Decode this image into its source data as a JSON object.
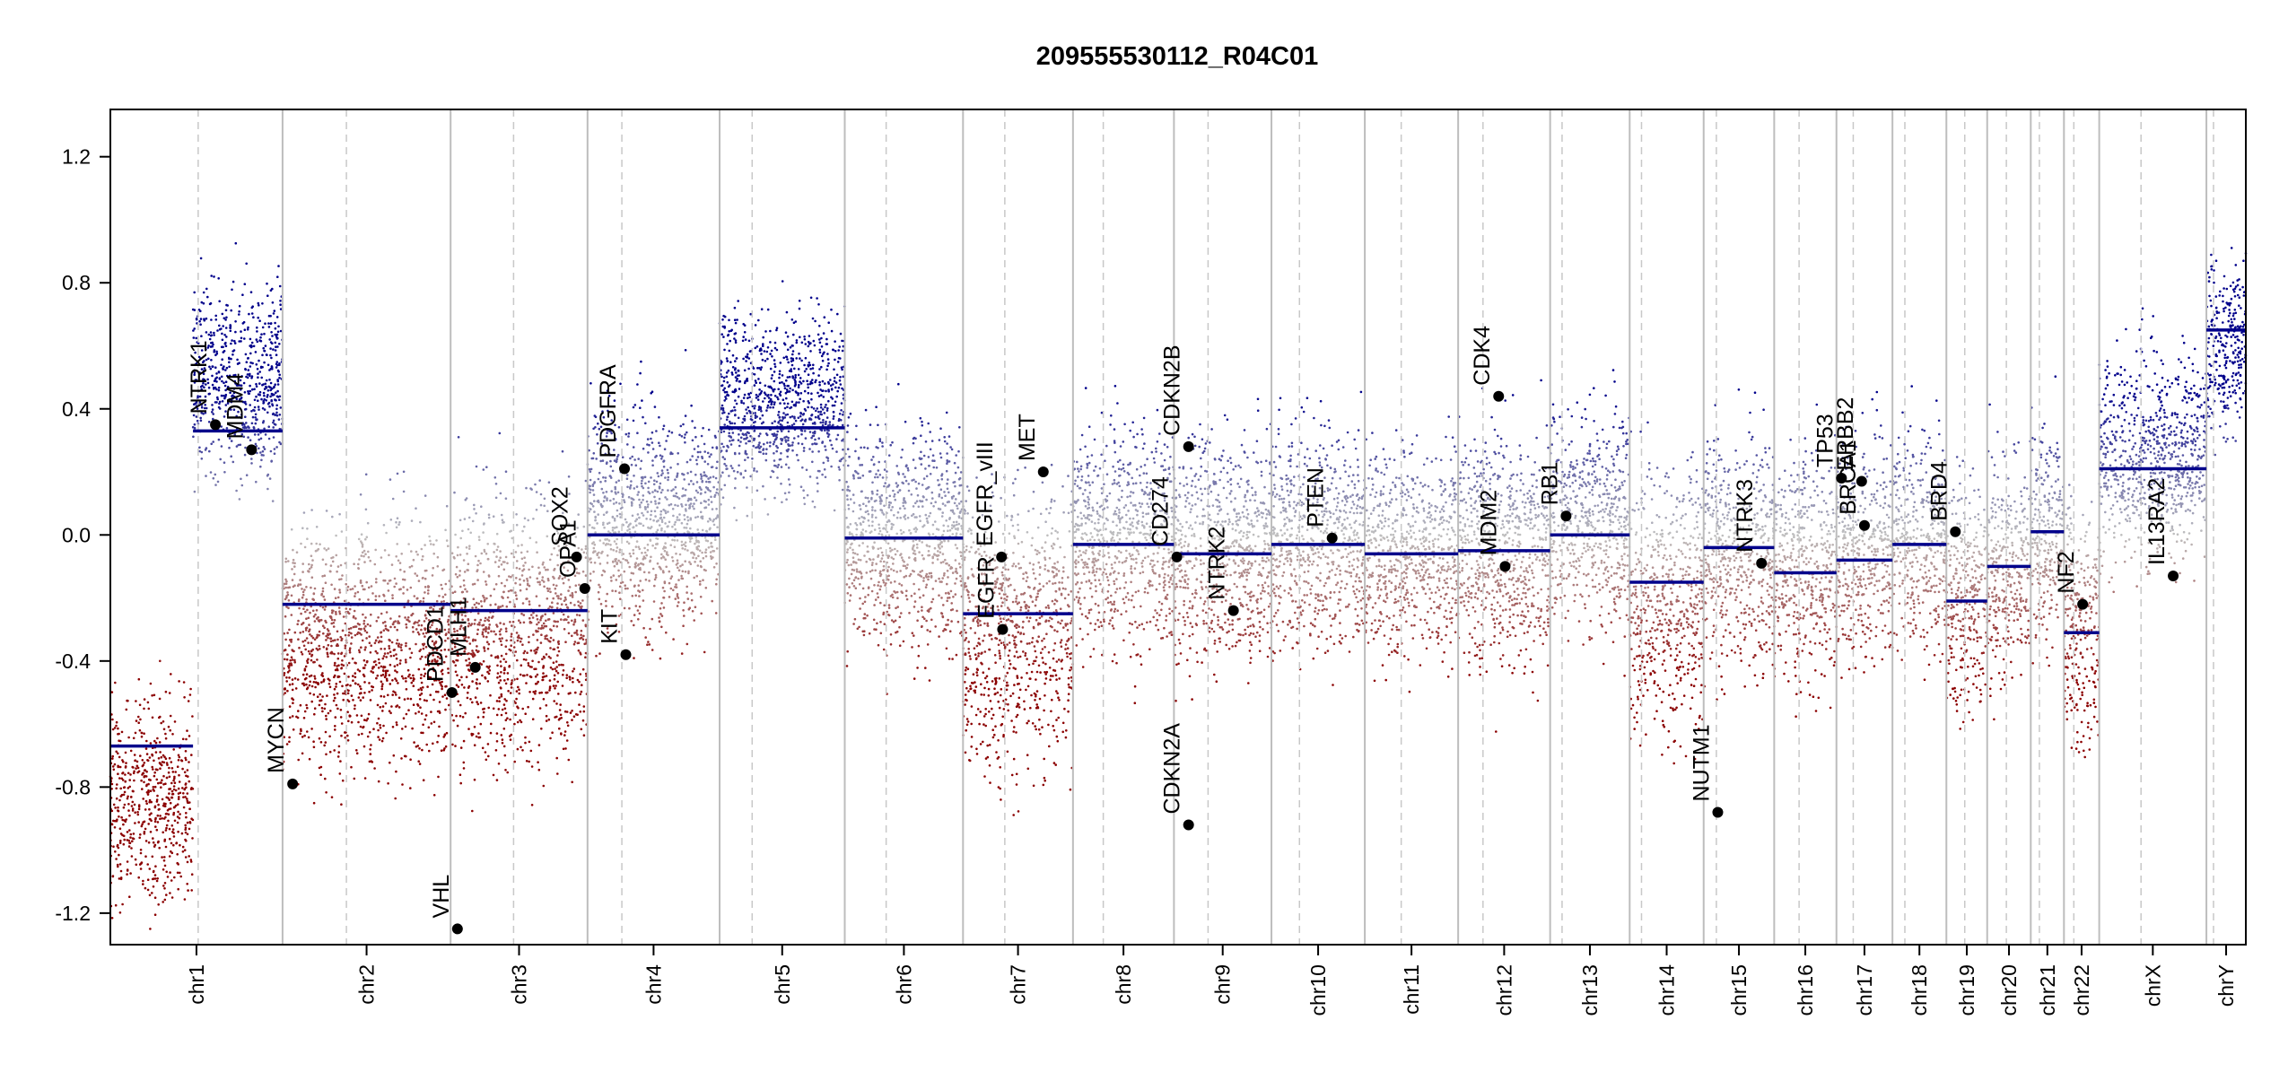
{
  "chart_data": {
    "type": "scatter",
    "title": "209555530112_R04C01",
    "xlabel": "",
    "ylabel": "",
    "ylim": [
      -1.3,
      1.35
    ],
    "y_ticks": [
      "1.2",
      "0.8",
      "0.4",
      "0.0",
      "-0.4",
      "-0.8",
      "-1.2"
    ],
    "y_tick_values": [
      1.2,
      0.8,
      0.4,
      0.0,
      -0.4,
      -0.8,
      -1.2
    ],
    "grid": false,
    "legend": "none",
    "colors": {
      "gain": "#00008b",
      "loss": "#8b0000",
      "neutral": "#bfbfbf",
      "segment": "#00008b",
      "boundary": "#bdbdbd",
      "centromere": "#c8c8c8"
    },
    "chromosomes": [
      {
        "name": "chr1",
        "weight": 249,
        "centromere": 0.51
      },
      {
        "name": "chr2",
        "weight": 243,
        "centromere": 0.38
      },
      {
        "name": "chr3",
        "weight": 198,
        "centromere": 0.46
      },
      {
        "name": "chr4",
        "weight": 191,
        "centromere": 0.26
      },
      {
        "name": "chr5",
        "weight": 181,
        "centromere": 0.26
      },
      {
        "name": "chr6",
        "weight": 171,
        "centromere": 0.35
      },
      {
        "name": "chr7",
        "weight": 159,
        "centromere": 0.38
      },
      {
        "name": "chr8",
        "weight": 146,
        "centromere": 0.3
      },
      {
        "name": "chr9",
        "weight": 141,
        "centromere": 0.35
      },
      {
        "name": "chr10",
        "weight": 135,
        "centromere": 0.3
      },
      {
        "name": "chr11",
        "weight": 135,
        "centromere": 0.39
      },
      {
        "name": "chr12",
        "weight": 133,
        "centromere": 0.27
      },
      {
        "name": "chr13",
        "weight": 115,
        "centromere": 0.15
      },
      {
        "name": "chr14",
        "weight": 107,
        "centromere": 0.16
      },
      {
        "name": "chr15",
        "weight": 102,
        "centromere": 0.18
      },
      {
        "name": "chr16",
        "weight": 90,
        "centromere": 0.4
      },
      {
        "name": "chr17",
        "weight": 81,
        "centromere": 0.3
      },
      {
        "name": "chr18",
        "weight": 78,
        "centromere": 0.23
      },
      {
        "name": "chr19",
        "weight": 59,
        "centromere": 0.45
      },
      {
        "name": "chr20",
        "weight": 63,
        "centromere": 0.44
      },
      {
        "name": "chr21",
        "weight": 48,
        "centromere": 0.26
      },
      {
        "name": "chr22",
        "weight": 51,
        "centromere": 0.28
      },
      {
        "name": "chrX",
        "weight": 155,
        "centromere": 0.39
      },
      {
        "name": "chrY",
        "weight": 57,
        "centromere": 0.18
      }
    ],
    "segments": [
      {
        "chrom": "chr1",
        "start": 0.0,
        "end": 0.48,
        "value": -0.67
      },
      {
        "chrom": "chr1",
        "start": 0.48,
        "end": 1.0,
        "value": 0.33
      },
      {
        "chrom": "chr2",
        "start": 0.0,
        "end": 1.0,
        "value": -0.22
      },
      {
        "chrom": "chr3",
        "start": 0.0,
        "end": 1.0,
        "value": -0.24
      },
      {
        "chrom": "chr4",
        "start": 0.0,
        "end": 1.0,
        "value": 0.0
      },
      {
        "chrom": "chr5",
        "start": 0.0,
        "end": 1.0,
        "value": 0.34
      },
      {
        "chrom": "chr6",
        "start": 0.0,
        "end": 1.0,
        "value": -0.01
      },
      {
        "chrom": "chr7",
        "start": 0.0,
        "end": 1.0,
        "value": -0.25
      },
      {
        "chrom": "chr8",
        "start": 0.0,
        "end": 1.0,
        "value": -0.03
      },
      {
        "chrom": "chr9",
        "start": 0.0,
        "end": 1.0,
        "value": -0.06
      },
      {
        "chrom": "chr10",
        "start": 0.0,
        "end": 1.0,
        "value": -0.03
      },
      {
        "chrom": "chr11",
        "start": 0.0,
        "end": 1.0,
        "value": -0.06
      },
      {
        "chrom": "chr12",
        "start": 0.0,
        "end": 1.0,
        "value": -0.05
      },
      {
        "chrom": "chr13",
        "start": 0.0,
        "end": 1.0,
        "value": 0.0
      },
      {
        "chrom": "chr14",
        "start": 0.0,
        "end": 1.0,
        "value": -0.15
      },
      {
        "chrom": "chr15",
        "start": 0.0,
        "end": 1.0,
        "value": -0.04
      },
      {
        "chrom": "chr16",
        "start": 0.0,
        "end": 1.0,
        "value": -0.12
      },
      {
        "chrom": "chr17",
        "start": 0.0,
        "end": 1.0,
        "value": -0.08
      },
      {
        "chrom": "chr18",
        "start": 0.0,
        "end": 1.0,
        "value": -0.03
      },
      {
        "chrom": "chr19",
        "start": 0.0,
        "end": 1.0,
        "value": -0.21
      },
      {
        "chrom": "chr20",
        "start": 0.0,
        "end": 1.0,
        "value": -0.1
      },
      {
        "chrom": "chr21",
        "start": 0.0,
        "end": 1.0,
        "value": 0.01
      },
      {
        "chrom": "chr22",
        "start": 0.0,
        "end": 1.0,
        "value": -0.31
      },
      {
        "chrom": "chrX",
        "start": 0.0,
        "end": 1.0,
        "value": 0.21
      },
      {
        "chrom": "chrY",
        "start": 0.0,
        "end": 1.0,
        "value": 0.65
      }
    ],
    "genes": [
      {
        "name": "NTRK1",
        "chrom": "chr1",
        "pos": 0.61,
        "value": 0.35
      },
      {
        "name": "MDM4",
        "chrom": "chr1",
        "pos": 0.82,
        "value": 0.27
      },
      {
        "name": "MYCN",
        "chrom": "chr2",
        "pos": 0.06,
        "value": -0.79
      },
      {
        "name": "PDCD1",
        "chrom": "chr3",
        "pos": 0.01,
        "value": -0.5
      },
      {
        "name": "VHL",
        "chrom": "chr3",
        "pos": 0.05,
        "value": -1.25
      },
      {
        "name": "MLH1",
        "chrom": "chr3",
        "pos": 0.18,
        "value": -0.42
      },
      {
        "name": "SOX2",
        "chrom": "chr3",
        "pos": 0.92,
        "value": -0.07
      },
      {
        "name": "OPA1",
        "chrom": "chr3",
        "pos": 0.98,
        "value": -0.17
      },
      {
        "name": "PDGFRA",
        "chrom": "chr4",
        "pos": 0.28,
        "value": 0.21
      },
      {
        "name": "KIT",
        "chrom": "chr4",
        "pos": 0.29,
        "value": -0.38
      },
      {
        "name": "EGFR_vIII",
        "chrom": "chr7",
        "pos": 0.35,
        "value": -0.07
      },
      {
        "name": "EGFR",
        "chrom": "chr7",
        "pos": 0.36,
        "value": -0.3
      },
      {
        "name": "MET",
        "chrom": "chr7",
        "pos": 0.73,
        "value": 0.2
      },
      {
        "name": "CD274",
        "chrom": "chr9",
        "pos": 0.03,
        "value": -0.07
      },
      {
        "name": "CDKN2B",
        "chrom": "chr9",
        "pos": 0.15,
        "value": 0.28
      },
      {
        "name": "CDKN2A",
        "chrom": "chr9",
        "pos": 0.15,
        "value": -0.92
      },
      {
        "name": "NTRK2",
        "chrom": "chr9",
        "pos": 0.61,
        "value": -0.24
      },
      {
        "name": "PTEN",
        "chrom": "chr10",
        "pos": 0.65,
        "value": -0.01
      },
      {
        "name": "CDK4",
        "chrom": "chr12",
        "pos": 0.44,
        "value": 0.44
      },
      {
        "name": "MDM2",
        "chrom": "chr12",
        "pos": 0.51,
        "value": -0.1
      },
      {
        "name": "RB1",
        "chrom": "chr13",
        "pos": 0.2,
        "value": 0.06
      },
      {
        "name": "NUTM1",
        "chrom": "chr15",
        "pos": 0.2,
        "value": -0.88
      },
      {
        "name": "NTRK3",
        "chrom": "chr15",
        "pos": 0.82,
        "value": -0.09
      },
      {
        "name": "TP53",
        "chrom": "chr17",
        "pos": 0.09,
        "value": 0.18
      },
      {
        "name": "ERBB2",
        "chrom": "chr17",
        "pos": 0.45,
        "value": 0.17
      },
      {
        "name": "BRCA1",
        "chrom": "chr17",
        "pos": 0.5,
        "value": 0.03
      },
      {
        "name": "BRD4",
        "chrom": "chr19",
        "pos": 0.22,
        "value": 0.01
      },
      {
        "name": "NF2",
        "chrom": "chr22",
        "pos": 0.53,
        "value": -0.22
      },
      {
        "name": "IL13RA2",
        "chrom": "chrX",
        "pos": 0.69,
        "value": -0.13
      }
    ],
    "probe_scatter": {
      "chr1": {
        "mean_p": -0.85,
        "mean_q": 0.5,
        "spread": 0.28
      },
      "chr2": {
        "mean": -0.35,
        "spread": 0.35
      },
      "chr3": {
        "mean": -0.3,
        "spread": 0.38
      },
      "chr4": {
        "mean": 0.05,
        "spread": 0.32
      },
      "chr5": {
        "mean": 0.42,
        "spread": 0.26
      },
      "chr6": {
        "mean": 0.0,
        "spread": 0.32
      },
      "chr7": {
        "mean": -0.3,
        "spread": 0.4
      },
      "chr8": {
        "mean": 0.0,
        "spread": 0.32
      },
      "chr9": {
        "mean": -0.05,
        "spread": 0.32
      },
      "chr10": {
        "mean": -0.02,
        "spread": 0.3
      },
      "chr11": {
        "mean": -0.04,
        "spread": 0.3
      },
      "chr12": {
        "mean": -0.05,
        "spread": 0.33
      },
      "chr13": {
        "mean": 0.05,
        "spread": 0.3
      },
      "chr14": {
        "mean": -0.2,
        "spread": 0.38
      },
      "chr15": {
        "mean": -0.05,
        "spread": 0.33
      },
      "chr16": {
        "mean": -0.1,
        "spread": 0.33
      },
      "chr17": {
        "mean": -0.05,
        "spread": 0.32
      },
      "chr18": {
        "mean": -0.02,
        "spread": 0.3
      },
      "chr19": {
        "mean": -0.2,
        "spread": 0.33
      },
      "chr20": {
        "mean": -0.1,
        "spread": 0.32
      },
      "chr21": {
        "mean": 0.0,
        "spread": 0.3
      },
      "chr22": {
        "mean": -0.3,
        "spread": 0.36
      },
      "chrX": {
        "mean": 0.25,
        "spread": 0.3
      },
      "chrY": {
        "mean": 0.6,
        "spread": 0.25
      }
    }
  }
}
